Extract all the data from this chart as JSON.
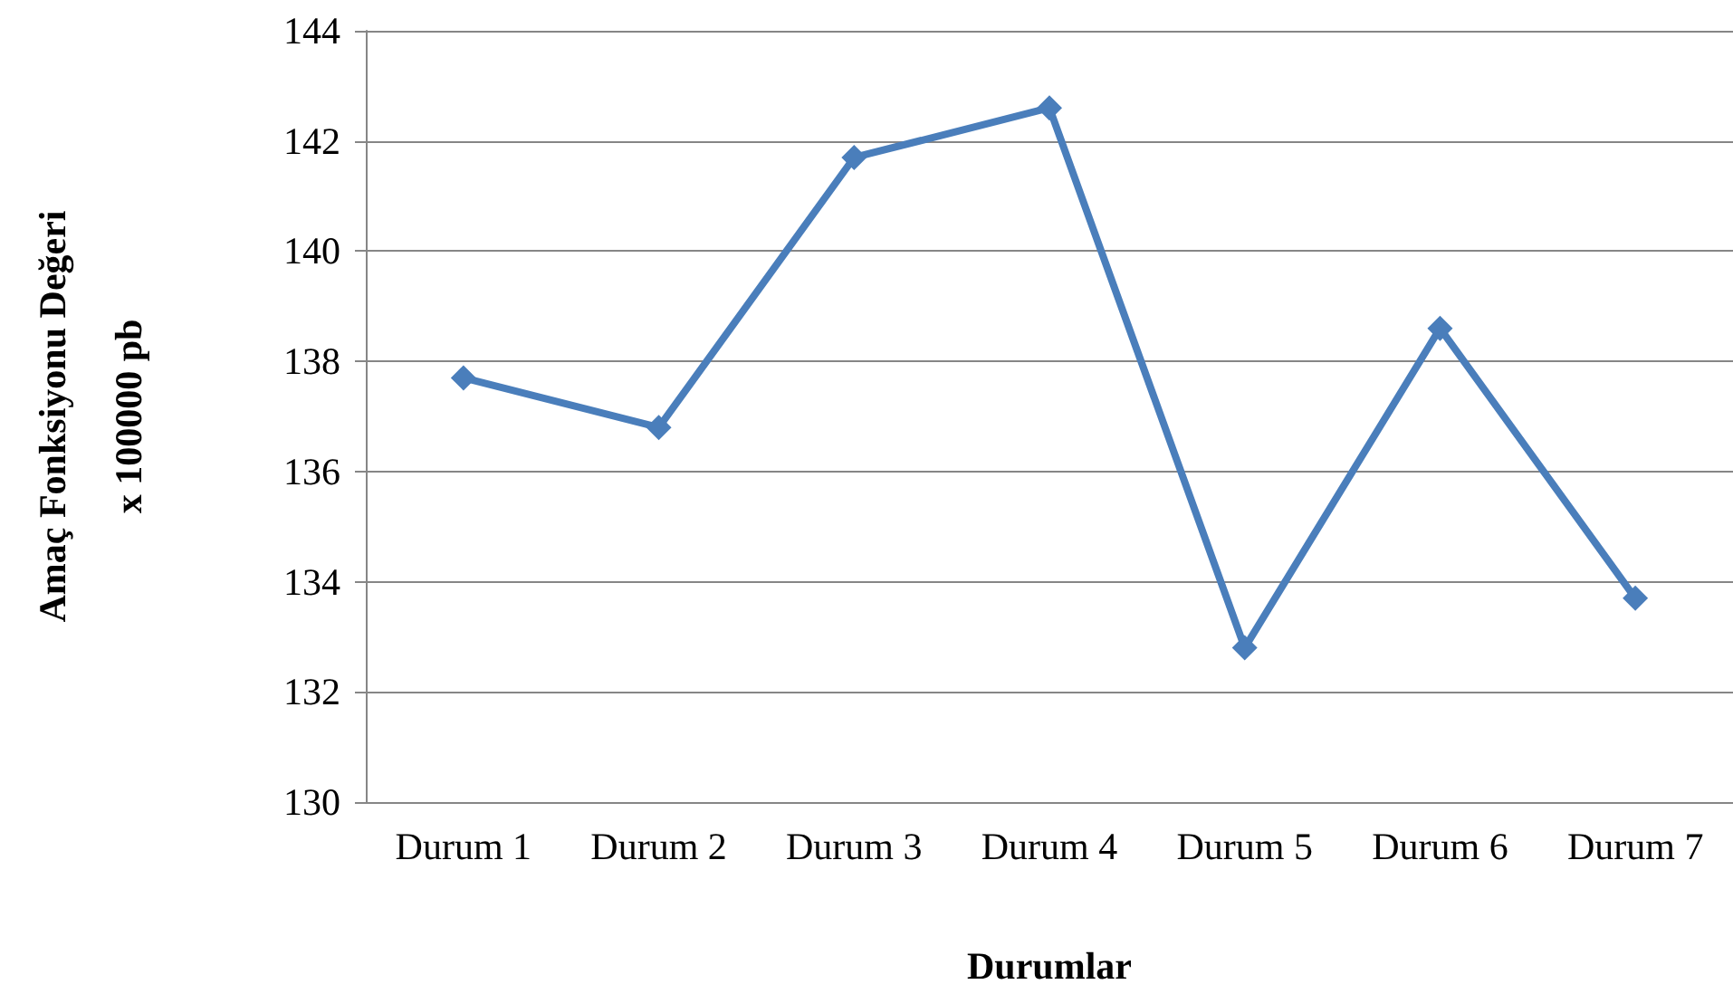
{
  "chart_data": {
    "type": "line",
    "xlabel": "Durumlar",
    "ylabel": "Amaç Fonksiyonu Değeri\nx 100000 pb",
    "categories": [
      "Durum 1",
      "Durum 2",
      "Durum 3",
      "Durum 4",
      "Durum 5",
      "Durum 6",
      "Durum 7"
    ],
    "series": [
      {
        "color": "#4a7ebb",
        "values": [
          137.7,
          136.8,
          141.7,
          142.6,
          132.8,
          138.6,
          133.7
        ]
      }
    ],
    "ylim": [
      130,
      144
    ],
    "yticks": [
      130,
      132,
      134,
      136,
      138,
      140,
      142,
      144
    ],
    "grid": "y",
    "marker": "diamond",
    "line_style": "solid"
  }
}
